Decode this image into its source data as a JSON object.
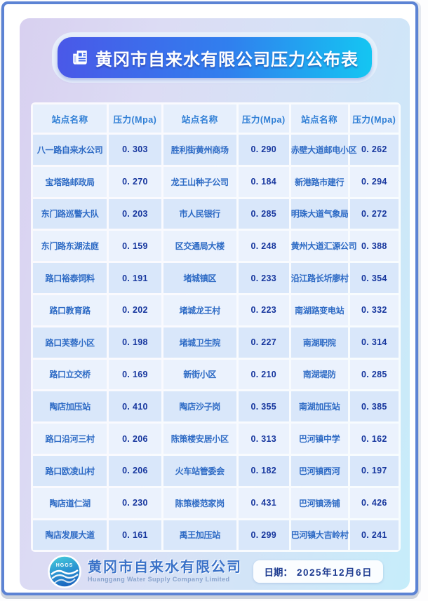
{
  "title": {
    "text": "黄冈市自来水有限公司压力公布表",
    "icon": "newspaper-icon"
  },
  "table": {
    "headers": [
      "站点名称",
      "压力(Mpa)",
      "站点名称",
      "压力(Mpa)",
      "站点名称",
      "压力(Mpa)"
    ],
    "rows": [
      [
        "八一路自来水公司",
        "0. 303",
        "胜利街黄州商场",
        "0. 290",
        "赤壁大道邮电小区",
        "0. 262"
      ],
      [
        "宝塔路邮政局",
        "0. 270",
        "龙王山种子公司",
        "0. 184",
        "新港路市建行",
        "0. 294"
      ],
      [
        "东门路巡警大队",
        "0. 203",
        "市人民银行",
        "0. 285",
        "明珠大道气象局",
        "0. 272"
      ],
      [
        "东门路东湖法庭",
        "0. 159",
        "区交通局大楼",
        "0. 248",
        "黄州大道汇源公司",
        "0. 388"
      ],
      [
        "路口裕泰饲料",
        "0. 191",
        "堵城镇区",
        "0. 233",
        "沿江路长圻廖村",
        "0. 354"
      ],
      [
        "路口教育路",
        "0. 202",
        "堵城龙王村",
        "0. 223",
        "南湖路变电站",
        "0. 332"
      ],
      [
        "路口芙蓉小区",
        "0. 198",
        "堵城卫生院",
        "0. 227",
        "南湖职院",
        "0. 314"
      ],
      [
        "路口立交桥",
        "0. 169",
        "新街小区",
        "0. 210",
        "南湖堤防",
        "0. 285"
      ],
      [
        "陶店加压站",
        "0. 410",
        "陶店沙子岗",
        "0. 355",
        "南湖加压站",
        "0. 385"
      ],
      [
        "路口沿河三村",
        "0. 206",
        "陈策楼安居小区",
        "0. 313",
        "巴河镇中学",
        "0. 162"
      ],
      [
        "路口欧凌山村",
        "0. 206",
        "火车站管委会",
        "0. 182",
        "巴河镇西河",
        "0. 197"
      ],
      [
        "陶店道仁湖",
        "0. 230",
        "陈策楼范家岗",
        "0. 431",
        "巴河镇汤铺",
        "0. 426"
      ],
      [
        "陶店发展大道",
        "0. 161",
        "禹王加压站",
        "0. 299",
        "巴河镇大吉岭村",
        "0. 241"
      ]
    ]
  },
  "footer": {
    "logo": {
      "icon": "water-waves-logo",
      "text": "HGGS"
    },
    "company_cn": "黄冈市自来水有限公司",
    "company_en": "Huanggang Water Supply Company Limited",
    "date_label": "日期：",
    "date_value": "2025年12月6日"
  },
  "colors": {
    "frame_border": "#5c83d4",
    "title_gradient_start": "#4a58e8",
    "title_gradient_end": "#14c6f2",
    "header_text": "#2e7ed5",
    "station_text": "#2e6bc5",
    "value_text": "#17379e",
    "row_dark": "#d9e7fa",
    "row_light": "#ebf2fd"
  }
}
